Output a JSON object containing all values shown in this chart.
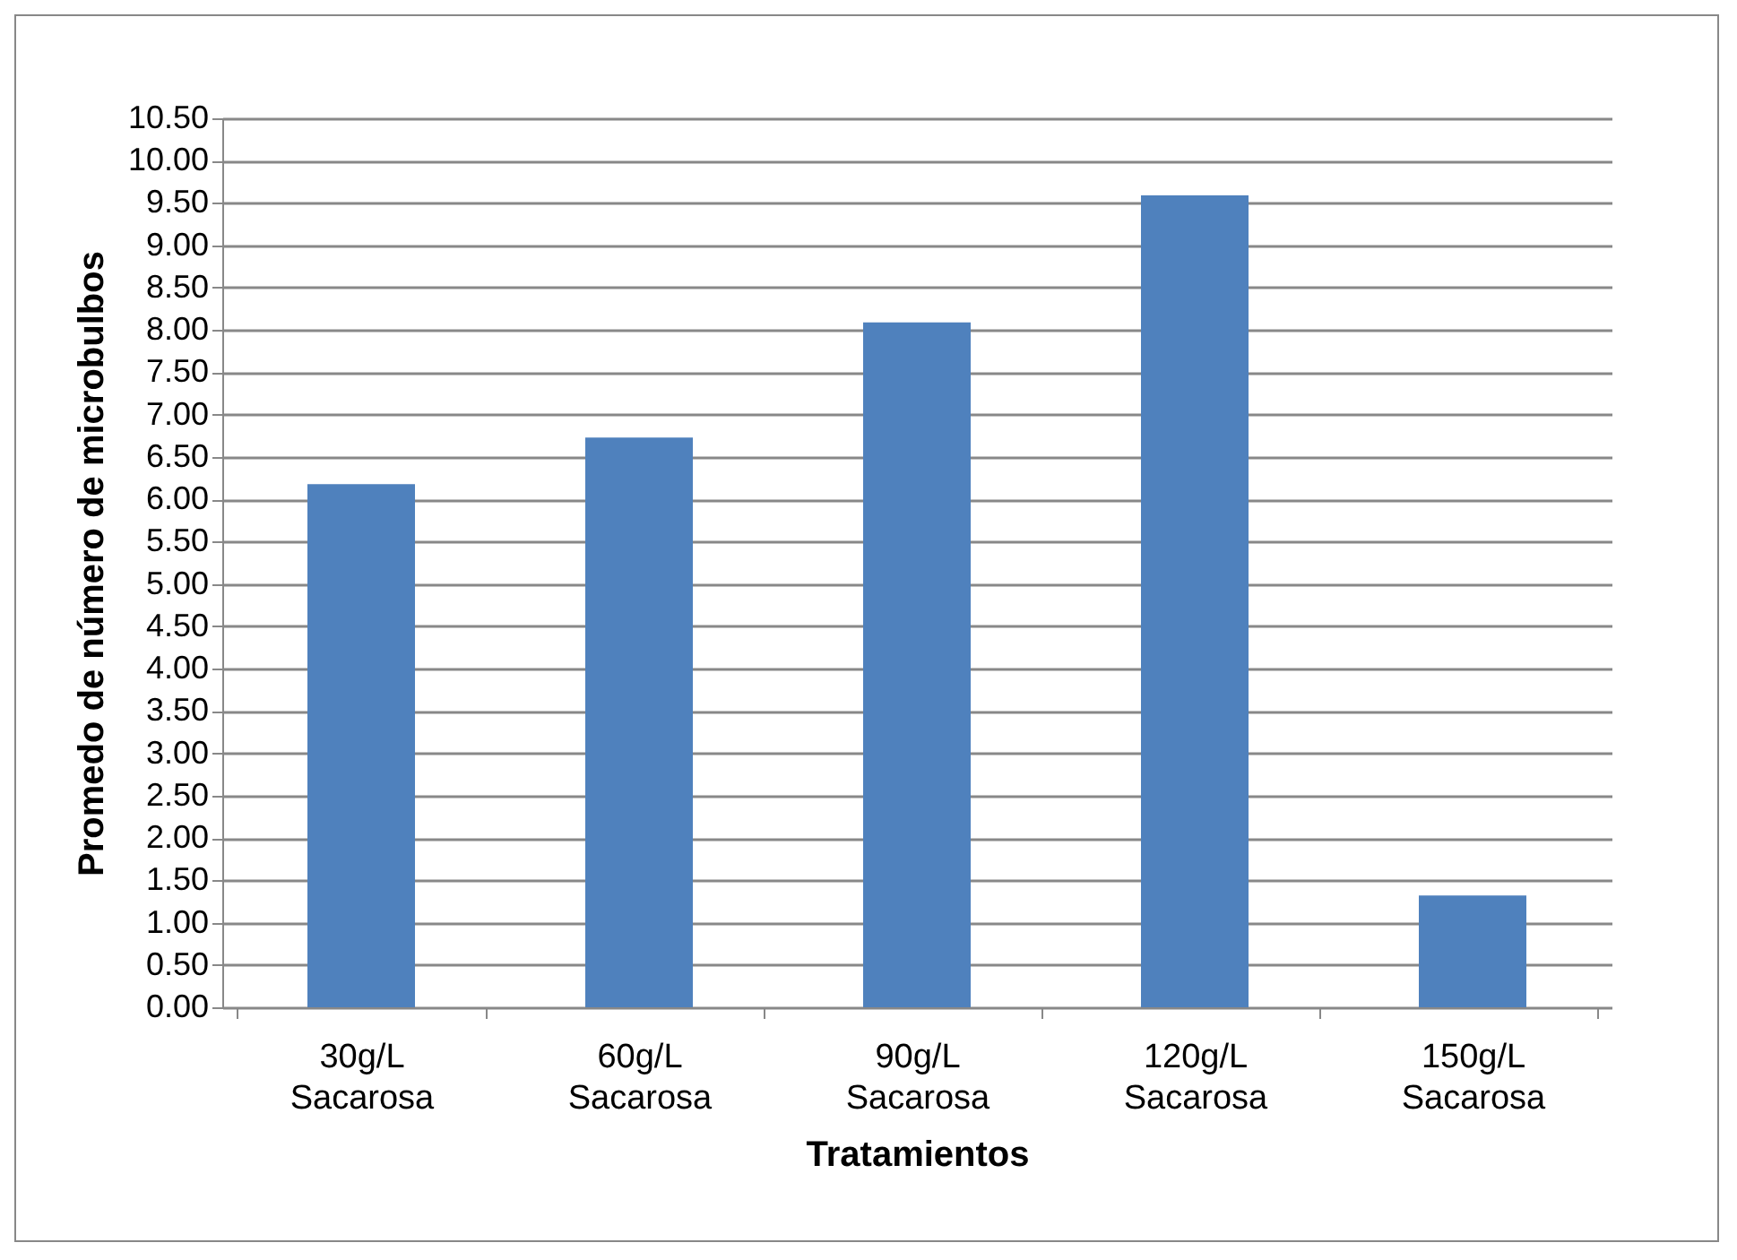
{
  "chart_data": {
    "type": "bar",
    "xlabel": "Tratamientos",
    "ylabel": "Promedo de número de microbulbos",
    "categories": [
      "30g/L Sacarosa",
      "60g/L Sacarosa",
      "90g/L Sacarosa",
      "120g/L Sacarosa",
      "150g/L Sacarosa"
    ],
    "values": [
      6.18,
      6.73,
      8.09,
      9.59,
      1.32
    ],
    "color": "#4f81bd",
    "ylim": [
      0,
      10.5
    ],
    "yticks": [
      {
        "value": 0,
        "label": "0.00"
      },
      {
        "value": 0.5,
        "label": "0.50"
      },
      {
        "value": 1,
        "label": "1.00"
      },
      {
        "value": 1.5,
        "label": "1.50"
      },
      {
        "value": 2,
        "label": "2.00"
      },
      {
        "value": 2.5,
        "label": "2.50"
      },
      {
        "value": 3,
        "label": "3.00"
      },
      {
        "value": 3.5,
        "label": "3.50"
      },
      {
        "value": 4,
        "label": "4.00"
      },
      {
        "value": 4.5,
        "label": "4.50"
      },
      {
        "value": 5,
        "label": "5.00"
      },
      {
        "value": 5.5,
        "label": "5.50"
      },
      {
        "value": 6,
        "label": "6.00"
      },
      {
        "value": 6.5,
        "label": "6.50"
      },
      {
        "value": 7,
        "label": "7.00"
      },
      {
        "value": 7.5,
        "label": "7.50"
      },
      {
        "value": 8,
        "label": "8.00"
      },
      {
        "value": 8.5,
        "label": "8.50"
      },
      {
        "value": 9,
        "label": "9.00"
      },
      {
        "value": 9.5,
        "label": "9.50"
      },
      {
        "value": 10,
        "label": "10.00"
      },
      {
        "value": 10.5,
        "label": "10.50"
      }
    ],
    "grid": "y"
  }
}
